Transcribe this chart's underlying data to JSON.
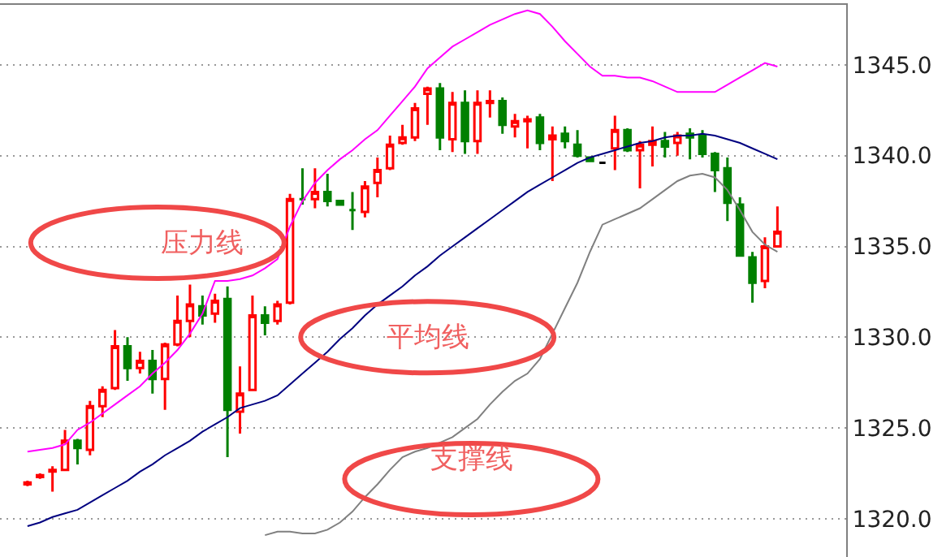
{
  "chart_data": {
    "type": "candlestick",
    "categories": [
      null,
      null,
      null,
      null,
      null,
      null,
      null,
      null,
      null,
      null,
      null,
      null,
      null,
      null,
      null,
      null,
      null,
      null,
      null,
      null,
      null,
      null,
      null,
      null,
      null,
      null,
      null,
      null,
      null,
      null,
      null,
      null,
      null,
      null,
      null,
      null,
      null,
      null,
      null,
      null,
      null,
      null,
      null,
      null,
      null,
      null,
      null,
      null,
      null,
      null,
      null,
      null,
      null,
      null,
      null,
      null,
      null,
      null,
      null,
      null,
      null
    ],
    "ohlc": [
      [
        1321.9,
        1322.1,
        1321.8,
        1322.0
      ],
      [
        1322.3,
        1322.5,
        1322.2,
        1322.4
      ],
      [
        1322.6,
        1322.9,
        1321.5,
        1322.7
      ],
      [
        1322.7,
        1324.9,
        1322.7,
        1324.3
      ],
      [
        1324.3,
        1324.4,
        1323.0,
        1323.9
      ],
      [
        1323.8,
        1326.5,
        1323.5,
        1326.2
      ],
      [
        1326.2,
        1327.3,
        1325.6,
        1327.1
      ],
      [
        1327.2,
        1330.4,
        1327.1,
        1329.5
      ],
      [
        1329.5,
        1330.0,
        1327.6,
        1328.3
      ],
      [
        1328.3,
        1329.2,
        1328.0,
        1328.7
      ],
      [
        1328.7,
        1329.3,
        1326.9,
        1327.7
      ],
      [
        1327.7,
        1329.7,
        1326.0,
        1329.6
      ],
      [
        1329.6,
        1332.3,
        1329.5,
        1330.9
      ],
      [
        1330.9,
        1332.9,
        1330.0,
        1331.8
      ],
      [
        1331.7,
        1332.3,
        1330.7,
        1331.2
      ],
      [
        1331.3,
        1332.4,
        1330.8,
        1332.0
      ],
      [
        1332.1,
        1332.8,
        1323.4,
        1326.0
      ],
      [
        1325.9,
        1328.4,
        1324.7,
        1326.9
      ],
      [
        1327.1,
        1332.3,
        1327.1,
        1331.2
      ],
      [
        1331.2,
        1331.7,
        1330.1,
        1330.8
      ],
      [
        1330.9,
        1332.0,
        1330.7,
        1331.8
      ],
      [
        1331.9,
        1337.9,
        1331.8,
        1337.6
      ],
      [
        1337.6,
        1339.3,
        1337.3,
        1337.6
      ],
      [
        1337.6,
        1339.3,
        1337.1,
        1338.0
      ],
      [
        1338.0,
        1339.0,
        1337.2,
        1337.5
      ],
      [
        1337.5,
        1337.5,
        1337.3,
        1337.3
      ],
      [
        1337.0,
        1338.0,
        1335.9,
        1337.0
      ],
      [
        1336.9,
        1338.6,
        1336.6,
        1338.3
      ],
      [
        1338.5,
        1339.9,
        1337.7,
        1339.2
      ],
      [
        1339.3,
        1341.1,
        1339.2,
        1340.6
      ],
      [
        1340.7,
        1341.7,
        1340.6,
        1341.0
      ],
      [
        1341.0,
        1342.9,
        1340.8,
        1342.6
      ],
      [
        1343.4,
        1343.8,
        1341.7,
        1343.7
      ],
      [
        1343.7,
        1344.0,
        1340.3,
        1341.0
      ],
      [
        1340.9,
        1343.5,
        1340.2,
        1342.9
      ],
      [
        1342.9,
        1343.6,
        1340.1,
        1340.8
      ],
      [
        1340.8,
        1343.6,
        1340.1,
        1342.9
      ],
      [
        1342.9,
        1343.6,
        1342.1,
        1343.0
      ],
      [
        1343.0,
        1343.2,
        1341.2,
        1341.7
      ],
      [
        1341.6,
        1342.3,
        1341.0,
        1341.9
      ],
      [
        1341.9,
        1342.2,
        1340.4,
        1342.0
      ],
      [
        1342.1,
        1342.3,
        1340.3,
        1340.7
      ],
      [
        1340.9,
        1341.6,
        1338.6,
        1341.1
      ],
      [
        1341.2,
        1341.6,
        1340.4,
        1340.8
      ],
      [
        1340.6,
        1341.4,
        1339.9,
        1340.0
      ],
      [
        1339.9,
        1339.9,
        1339.7,
        1339.7
      ],
      [
        1339.6,
        1339.6,
        1339.6,
        1339.6
      ],
      [
        1340.4,
        1342.2,
        1339.2,
        1341.4
      ],
      [
        1341.4,
        1341.5,
        1340.2,
        1340.3
      ],
      [
        1340.3,
        1340.8,
        1338.2,
        1340.6
      ],
      [
        1340.6,
        1341.6,
        1339.4,
        1340.8
      ],
      [
        1340.8,
        1341.3,
        1339.9,
        1340.5
      ],
      [
        1340.7,
        1341.3,
        1340.0,
        1341.1
      ],
      [
        1341.2,
        1341.5,
        1339.8,
        1341.0
      ],
      [
        1341.1,
        1341.4,
        1339.9,
        1340.1
      ],
      [
        1340.1,
        1340.2,
        1338.0,
        1339.2
      ],
      [
        1339.3,
        1339.9,
        1336.4,
        1337.4
      ],
      [
        1337.3,
        1337.7,
        1334.5,
        1334.5
      ],
      [
        1334.4,
        1334.7,
        1331.9,
        1333.0
      ],
      [
        1333.1,
        1335.5,
        1332.7,
        1335.0
      ],
      [
        1335.0,
        1337.2,
        1335.0,
        1335.8
      ]
    ],
    "colors": [
      "#ff0000",
      "#ff0000",
      "#ff0000",
      "#ff0000",
      "#008000",
      "#ff0000",
      "#ff0000",
      "#ff0000",
      "#008000",
      "#ff0000",
      "#008000",
      "#ff0000",
      "#ff0000",
      "#ff0000",
      "#008000",
      "#ff0000",
      "#008000",
      "#ff0000",
      "#ff0000",
      "#008000",
      "#ff0000",
      "#ff0000",
      "#008000",
      "#ff0000",
      "#008000",
      "#008000",
      "#008000",
      "#ff0000",
      "#ff0000",
      "#ff0000",
      "#ff0000",
      "#ff0000",
      "#ff0000",
      "#008000",
      "#ff0000",
      "#008000",
      "#ff0000",
      "#ff0000",
      "#008000",
      "#ff0000",
      "#ff0000",
      "#008000",
      "#ff0000",
      "#008000",
      "#008000",
      "#008000",
      "#000000",
      "#ff0000",
      "#008000",
      "#ff0000",
      "#ff0000",
      "#008000",
      "#ff0000",
      "#008000",
      "#008000",
      "#008000",
      "#008000",
      "#008000",
      "#008000",
      "#ff0000",
      "#ff0000"
    ],
    "series": [
      {
        "type": "line",
        "color": "#ff00ff",
        "values": [
          1323.7,
          1323.8,
          1323.9,
          1324.1,
          1324.9,
          1325.3,
          1325.8,
          1326.3,
          1326.8,
          1327.3,
          1328.0,
          1328.6,
          1329.3,
          1330.2,
          1331.3,
          1333.1,
          1333.1,
          1333.2,
          1333.4,
          1333.8,
          1334.3,
          1336.1,
          1337.5,
          1338.5,
          1339.2,
          1339.8,
          1340.3,
          1340.9,
          1341.4,
          1342.2,
          1343.0,
          1343.8,
          1344.8,
          1345.4,
          1346.0,
          1346.4,
          1346.8,
          1347.2,
          1347.5,
          1347.8,
          1348.0,
          1347.8,
          1347.1,
          1346.3,
          1345.6,
          1344.9,
          1344.4,
          1344.4,
          1344.3,
          1344.3,
          1344.1,
          1343.8,
          1343.5,
          1343.5,
          1343.5,
          1343.5,
          1343.9,
          1344.3,
          1344.7,
          1345.1,
          1344.9
        ]
      },
      {
        "type": "line",
        "color": "#000080",
        "values": [
          1319.6,
          1319.8,
          1320.1,
          1320.3,
          1320.5,
          1320.9,
          1321.3,
          1321.7,
          1322.1,
          1322.6,
          1323.0,
          1323.5,
          1323.9,
          1324.3,
          1324.8,
          1325.2,
          1325.6,
          1326.1,
          1326.3,
          1326.5,
          1326.8,
          1327.4,
          1328.0,
          1328.6,
          1329.2,
          1329.9,
          1330.5,
          1331.2,
          1331.8,
          1332.3,
          1332.8,
          1333.4,
          1333.9,
          1334.5,
          1335.0,
          1335.5,
          1336.0,
          1336.5,
          1337.0,
          1337.5,
          1338.0,
          1338.4,
          1338.8,
          1339.2,
          1339.6,
          1339.9,
          1340.1,
          1340.3,
          1340.5,
          1340.7,
          1340.8,
          1341.0,
          1341.1,
          1341.1,
          1341.2,
          1341.1,
          1340.9,
          1340.7,
          1340.4,
          1340.1,
          1339.8
        ]
      },
      {
        "type": "line",
        "color": "#808080",
        "values": [
          null,
          null,
          null,
          null,
          null,
          null,
          null,
          null,
          null,
          null,
          null,
          null,
          null,
          null,
          null,
          null,
          null,
          null,
          null,
          1319.1,
          1319.3,
          1319.3,
          1319.2,
          1319.2,
          1319.4,
          1319.8,
          1320.4,
          1321.2,
          1321.9,
          1322.7,
          1323.4,
          1323.7,
          1323.9,
          1324.2,
          1324.5,
          1325.0,
          1325.5,
          1326.3,
          1327.0,
          1327.6,
          1328.0,
          1328.8,
          1330.2,
          1331.6,
          1333.0,
          1334.7,
          1336.2,
          1336.5,
          1336.8,
          1337.1,
          1337.6,
          1338.1,
          1338.6,
          1338.9,
          1339.0,
          1338.8,
          1338.1,
          1337.0,
          1335.8,
          1335.1,
          1334.7
        ]
      }
    ],
    "annotations": [
      "压力线",
      "平均线",
      "支撑线"
    ],
    "ylim": [
      1317.9,
      1348.3
    ],
    "yticks": [
      {
        "value": 1320,
        "label": "1320.0"
      },
      {
        "value": 1325,
        "label": "1325.0"
      },
      {
        "value": 1330,
        "label": "1330.0"
      },
      {
        "value": 1335,
        "label": "1335.0"
      },
      {
        "value": 1340,
        "label": "1340.0"
      },
      {
        "value": 1345,
        "label": "1345.0"
      }
    ],
    "tick_labels": "y",
    "grid": "y"
  }
}
